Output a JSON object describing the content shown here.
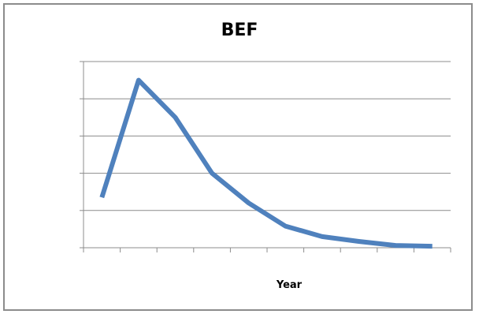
{
  "chart_data": {
    "type": "line",
    "title": "BEF",
    "xlabel": "Year",
    "ylabel": "",
    "x": [
      1,
      2,
      3,
      4,
      5,
      6,
      7,
      8,
      9,
      10
    ],
    "series": [
      {
        "values": [
          1.35,
          4.5,
          3.5,
          2.0,
          1.2,
          0.58,
          0.3,
          0.17,
          0.06,
          0.04
        ]
      }
    ],
    "xlim": [
      0,
      10
    ],
    "ylim": [
      0,
      5
    ],
    "yticks": 6,
    "xticks": 11,
    "grid": true,
    "color": "#4f81bd",
    "grid_color": "#8c8c8c"
  }
}
